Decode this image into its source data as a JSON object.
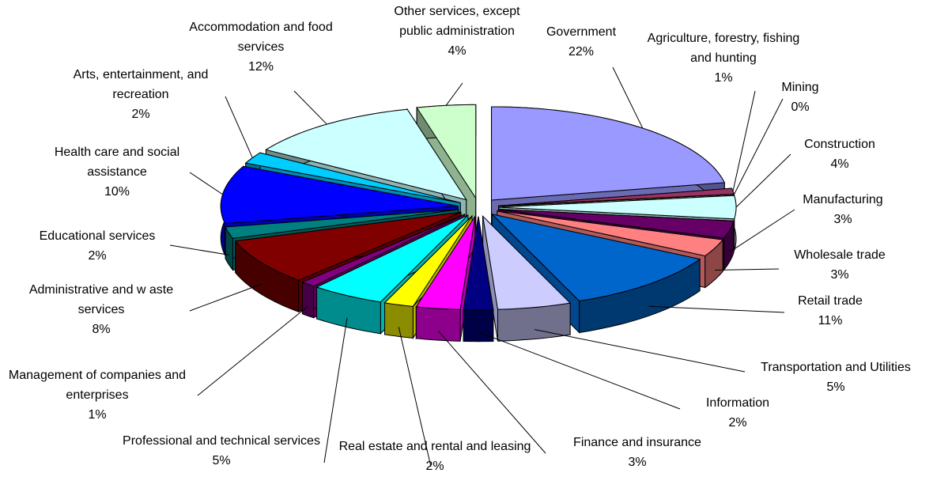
{
  "chart_data": {
    "type": "pie",
    "categories": [
      "Government",
      "Agriculture, forestry, fishing and hunting",
      "Mining",
      "Construction",
      "Manufacturing",
      "Wholesale trade",
      "Retail trade",
      "Transportation and Utilities",
      "Information",
      "Finance and insurance",
      "Real estate and rental and leasing",
      "Professional and technical services",
      "Management of companies and enterprises",
      "Administrative and w aste services",
      "Educational services",
      "Health care and social assistance",
      "Arts, entertainment, and recreation",
      "Accommodation and food services",
      "Other services, except public administration"
    ],
    "values": [
      22,
      1,
      0,
      4,
      3,
      3,
      11,
      5,
      2,
      3,
      2,
      5,
      1,
      8,
      2,
      10,
      2,
      12,
      4
    ],
    "value_labels": [
      "22%",
      "1%",
      "0%",
      "4%",
      "3%",
      "3%",
      "11%",
      "5%",
      "2%",
      "3%",
      "2%",
      "5%",
      "1%",
      "8%",
      "2%",
      "10%",
      "2%",
      "12%",
      "4%"
    ],
    "colors": [
      "#9999ff",
      "#993366",
      "#ffffcc",
      "#ccffff",
      "#660066",
      "#ff8080",
      "#0066cc",
      "#ccccff",
      "#000080",
      "#ff00ff",
      "#ffff00",
      "#00ffff",
      "#800080",
      "#800000",
      "#008080",
      "#0000ff",
      "#00ccff",
      "#ccffff",
      "#ccffcc"
    ]
  }
}
